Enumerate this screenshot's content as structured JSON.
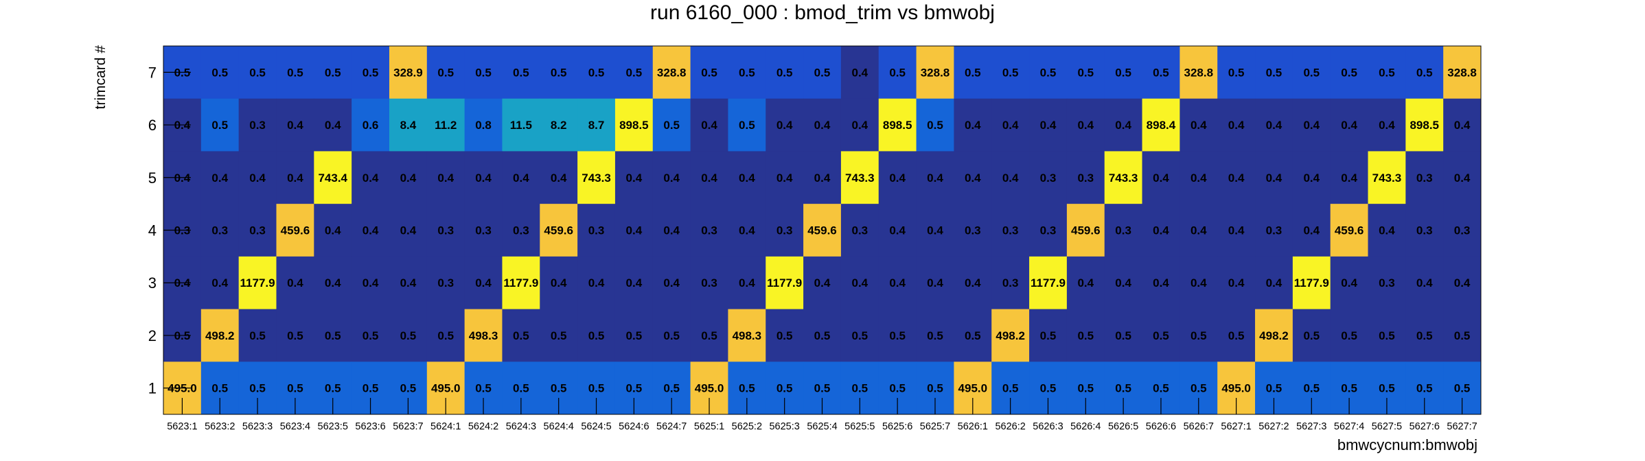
{
  "chart_data": {
    "type": "heatmap",
    "title": "run 6160_000 : bmod_trim vs bmwobj",
    "xlabel": "bmwcycnum:bmwobj",
    "ylabel": "trimcard #",
    "x_categories": [
      "5623:1",
      "5623:2",
      "5623:3",
      "5623:4",
      "5623:5",
      "5623:6",
      "5623:7",
      "5624:1",
      "5624:2",
      "5624:3",
      "5624:4",
      "5624:5",
      "5624:6",
      "5624:7",
      "5625:1",
      "5625:2",
      "5625:3",
      "5625:4",
      "5625:5",
      "5625:6",
      "5625:7",
      "5626:1",
      "5626:2",
      "5626:3",
      "5626:4",
      "5626:5",
      "5626:6",
      "5626:7",
      "5627:1",
      "5627:2",
      "5627:3",
      "5627:4",
      "5627:5",
      "5627:6",
      "5627:7"
    ],
    "y_categories": [
      "1",
      "2",
      "3",
      "4",
      "5",
      "6",
      "7"
    ],
    "rows": [
      {
        "y": "7",
        "values": [
          0.5,
          0.5,
          0.5,
          0.5,
          0.5,
          0.5,
          328.9,
          0.5,
          0.5,
          0.5,
          0.5,
          0.5,
          0.5,
          328.8,
          0.5,
          0.5,
          0.5,
          0.5,
          0.4,
          0.5,
          328.8,
          0.5,
          0.5,
          0.5,
          0.5,
          0.5,
          0.5,
          328.8,
          0.5,
          0.5,
          0.5,
          0.5,
          0.5,
          0.5,
          328.8
        ]
      },
      {
        "y": "6",
        "values": [
          0.4,
          0.5,
          0.3,
          0.4,
          0.4,
          0.6,
          8.4,
          11.2,
          0.8,
          11.5,
          8.2,
          8.7,
          898.5,
          0.5,
          0.4,
          0.5,
          0.4,
          0.4,
          0.4,
          898.5,
          0.5,
          0.4,
          0.4,
          0.4,
          0.4,
          0.4,
          898.4,
          0.4,
          0.4,
          0.4,
          0.4,
          0.4,
          0.4,
          898.5,
          0.4
        ]
      },
      {
        "y": "5",
        "values": [
          0.4,
          0.4,
          0.4,
          0.4,
          743.4,
          0.4,
          0.4,
          0.4,
          0.4,
          0.4,
          0.4,
          743.3,
          0.4,
          0.4,
          0.4,
          0.4,
          0.4,
          0.4,
          743.3,
          0.4,
          0.4,
          0.4,
          0.4,
          0.3,
          0.3,
          743.3,
          0.4,
          0.4,
          0.4,
          0.4,
          0.4,
          0.4,
          743.3,
          0.3,
          0.4
        ]
      },
      {
        "y": "4",
        "values": [
          0.3,
          0.3,
          0.3,
          459.6,
          0.4,
          0.4,
          0.4,
          0.3,
          0.3,
          0.3,
          459.6,
          0.3,
          0.4,
          0.4,
          0.3,
          0.4,
          0.3,
          459.6,
          0.3,
          0.4,
          0.4,
          0.3,
          0.3,
          0.3,
          459.6,
          0.3,
          0.4,
          0.4,
          0.4,
          0.3,
          0.4,
          459.6,
          0.4,
          0.3,
          0.3
        ]
      },
      {
        "y": "3",
        "values": [
          0.4,
          0.4,
          1177.9,
          0.4,
          0.4,
          0.4,
          0.4,
          0.3,
          0.4,
          1177.9,
          0.4,
          0.4,
          0.4,
          0.4,
          0.3,
          0.4,
          1177.9,
          0.4,
          0.4,
          0.4,
          0.4,
          0.4,
          0.3,
          1177.9,
          0.4,
          0.4,
          0.4,
          0.4,
          0.4,
          0.4,
          1177.9,
          0.4,
          0.3,
          0.4,
          0.4
        ]
      },
      {
        "y": "2",
        "values": [
          0.5,
          498.2,
          0.5,
          0.5,
          0.5,
          0.5,
          0.5,
          0.5,
          498.3,
          0.5,
          0.5,
          0.5,
          0.5,
          0.5,
          0.5,
          498.3,
          0.5,
          0.5,
          0.5,
          0.5,
          0.5,
          0.5,
          498.2,
          0.5,
          0.5,
          0.5,
          0.5,
          0.5,
          0.5,
          498.2,
          0.5,
          0.5,
          0.5,
          0.5,
          0.5
        ]
      },
      {
        "y": "1",
        "values": [
          495.0,
          0.5,
          0.5,
          0.5,
          0.5,
          0.5,
          0.5,
          495.0,
          0.5,
          0.5,
          0.5,
          0.5,
          0.5,
          0.5,
          495.0,
          0.5,
          0.5,
          0.5,
          0.5,
          0.5,
          0.5,
          495.0,
          0.5,
          0.5,
          0.5,
          0.5,
          0.5,
          0.5,
          495.0,
          0.5,
          0.5,
          0.5,
          0.5,
          0.5,
          0.5
        ]
      }
    ],
    "grid": false,
    "legend": "none",
    "colors": {
      "dark": "#283593",
      "mid_blue": "#1565d8",
      "mid_blue_alt": "#1e4fd0",
      "teal": "#19a2c6",
      "orange": "#f7c53c",
      "yellow": "#f9f425",
      "axis": "#000000"
    }
  }
}
